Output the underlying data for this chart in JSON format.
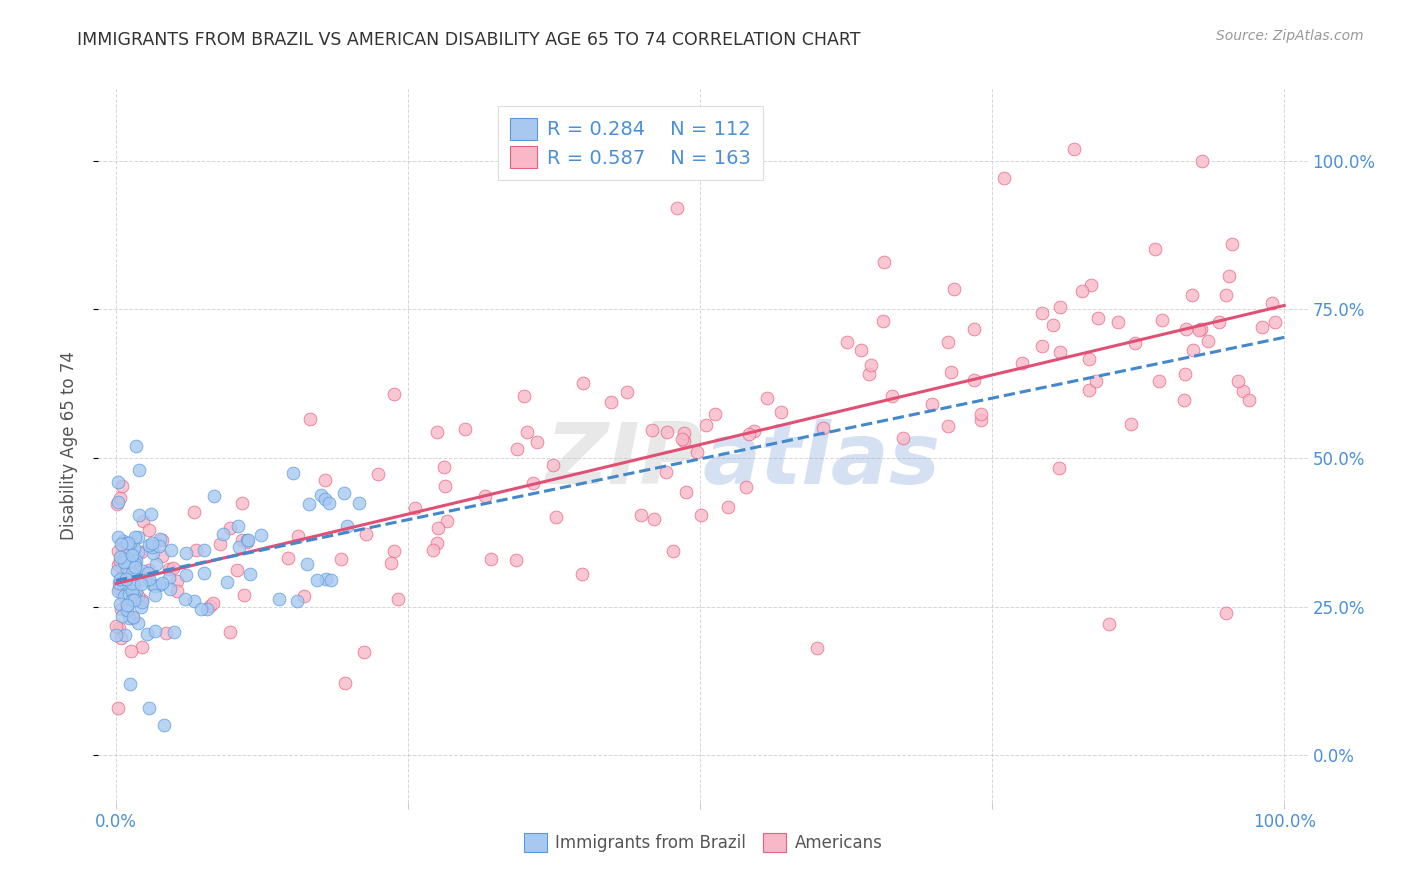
{
  "title": "IMMIGRANTS FROM BRAZIL VS AMERICAN DISABILITY AGE 65 TO 74 CORRELATION CHART",
  "source": "Source: ZipAtlas.com",
  "ylabel": "Disability Age 65 to 74",
  "brazil_R": 0.284,
  "brazil_N": 112,
  "americans_R": 0.587,
  "americans_N": 163,
  "brazil_color": "#a8c8f0",
  "brazil_edge_color": "#5599dd",
  "brazil_line_color": "#4488cc",
  "americans_color": "#f8b8c8",
  "americans_edge_color": "#e86080",
  "americans_line_color": "#e05075",
  "watermark": "ZIPAtlas",
  "legend_brazil_label": "Immigrants from Brazil",
  "legend_americans_label": "Americans",
  "background_color": "#ffffff",
  "grid_color": "#bbbbbb",
  "title_color": "#333333",
  "axis_tick_color": "#4a90d9",
  "right_axis_color": "#4a90d9",
  "ylabel_color": "#555555",
  "legend_text_color": "#555555",
  "stats_text_color": "#4a90d9",
  "source_color": "#999999"
}
